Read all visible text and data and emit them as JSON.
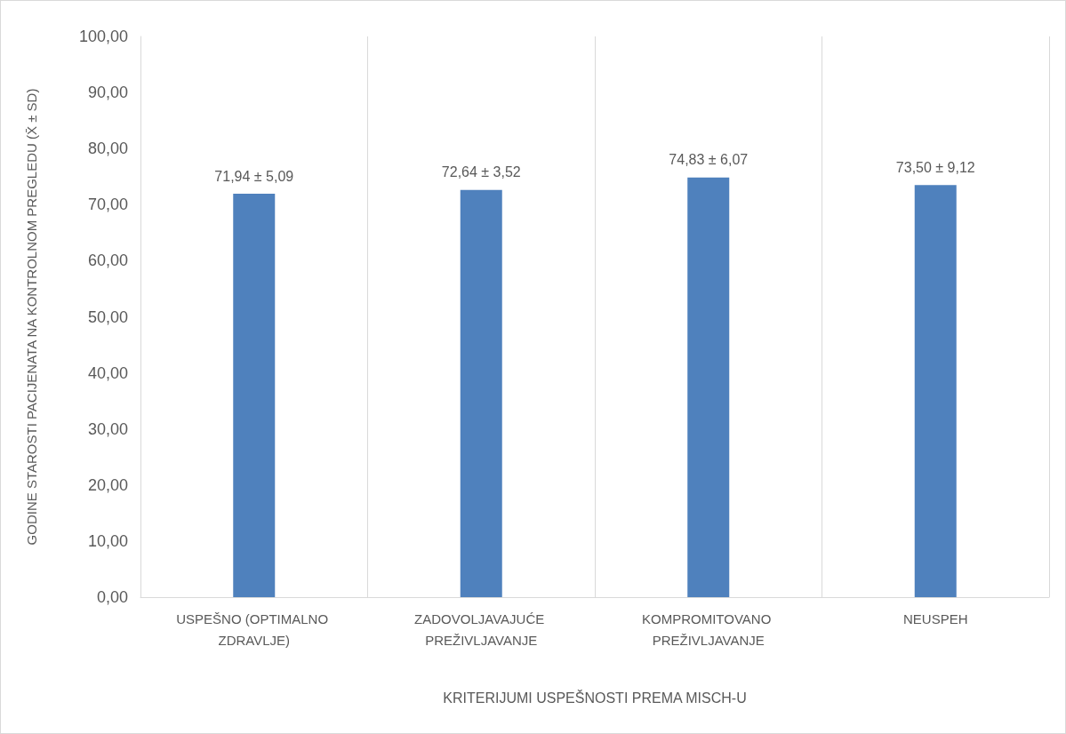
{
  "chart_data": {
    "type": "bar",
    "xlabel": "KRITERIJUMI USPEŠNOSTI PREMA MISCH-U",
    "ylabel": "GODINE STAROSTI PACIJENATA NA KONTROLNOM PREGLEDU (X̄ ± SD)",
    "categories": [
      "USPEŠNO (OPTIMALNO ZDRAVLJE)",
      "ZADOVOLJAVAJUĆE PREŽIVLJAVANJE",
      "KOMPROMITOVANO PREŽIVLJAVANJE",
      "NEUSPEH"
    ],
    "values": [
      71.94,
      72.64,
      74.83,
      73.5
    ],
    "value_labels": [
      "71,94 ± 5,09",
      "72,64 ± 3,52",
      "74,83 ± 6,07",
      "73,50 ± 9,12"
    ],
    "color": "#4f81bd",
    "ylim": [
      0,
      100
    ],
    "yticks": [
      {
        "value": 0,
        "label": "0,00"
      },
      {
        "value": 10,
        "label": "10,00"
      },
      {
        "value": 20,
        "label": "20,00"
      },
      {
        "value": 30,
        "label": "30,00"
      },
      {
        "value": 40,
        "label": "40,00"
      },
      {
        "value": 50,
        "label": "50,00"
      },
      {
        "value": 60,
        "label": "60,00"
      },
      {
        "value": 70,
        "label": "70,00"
      },
      {
        "value": 80,
        "label": "80,00"
      },
      {
        "value": 90,
        "label": "90,00"
      },
      {
        "value": 100,
        "label": "100,00"
      }
    ],
    "grid": "x"
  }
}
